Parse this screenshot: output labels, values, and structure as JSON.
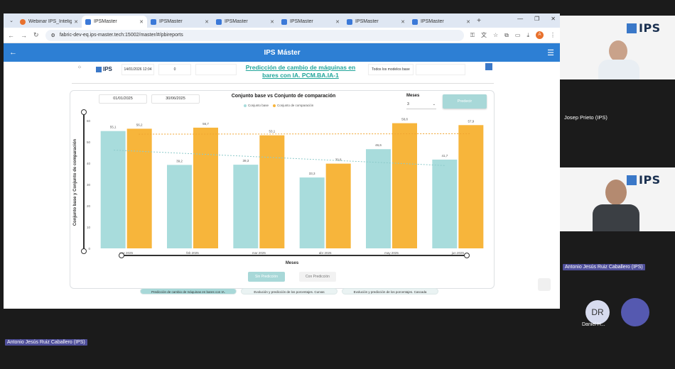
{
  "browser": {
    "tabs": [
      {
        "label": "Webinar IPS_Inteligencia",
        "icon": "orange",
        "active": false
      },
      {
        "label": "IPSMaster",
        "icon": "blue",
        "active": true
      },
      {
        "label": "IPSMaster",
        "icon": "blue",
        "active": false
      },
      {
        "label": "IPSMaster",
        "icon": "blue",
        "active": false
      },
      {
        "label": "IPSMaster",
        "icon": "blue",
        "active": false
      },
      {
        "label": "IPSMaster",
        "icon": "blue",
        "active": false
      },
      {
        "label": "IPSMaster",
        "icon": "blue",
        "active": false
      }
    ],
    "url": "fabric-dev-eq.ips-master.tech:15002/master/#/pbireports",
    "profile_initial": "A"
  },
  "app": {
    "title": "IPS Máster"
  },
  "report": {
    "header": {
      "logo_text": "IPS",
      "date": "14/01/2026 12:04",
      "count": "0",
      "filter_placeholder": "",
      "title": "Predicción de cambio de máquinas en bares con IA. PCM.BA.IA-1",
      "models_label": "Todos los modelos base"
    },
    "date_from": "01/01/2025",
    "date_to": "30/06/2025",
    "meses_label": "Meses",
    "meses_value": "3",
    "predecir_label": "Predecir",
    "sin_prediccion": "Sin Predicción",
    "con_prediccion": "Con Predicción",
    "bottom_tabs": [
      "Predicción de cambio de máquinas en bares con IA.",
      "Evolución y predicción de los porcentajes. Curvas",
      "Evolución y predicción de los porcentajes. Cascada"
    ]
  },
  "chart_data": {
    "type": "bar",
    "title": "Conjunto base vs Conjunto de comparación",
    "xlabel": "Meses",
    "ylabel": "Conjunto base y Conjunto de comparación",
    "categories": [
      "ene 2025",
      "feb 2025",
      "mar 2025",
      "abr 2025",
      "may 2025",
      "jun 2025"
    ],
    "series": [
      {
        "name": "Conjunto base",
        "color": "#a8dcdc",
        "values": [
          55.1,
          39.2,
          39.3,
          33.3,
          46.6,
          41.7
        ],
        "labels": [
          "55,1",
          "39,2",
          "39,3",
          "33,3",
          "46,6",
          "41,7"
        ]
      },
      {
        "name": "Conjunto de comparación",
        "color": "#f7b53b",
        "values": [
          56.2,
          56.7,
          53.1,
          39.8,
          58.8,
          57.9
        ],
        "labels": [
          "56,2",
          "56,7",
          "53,1",
          "39,8",
          "58,8",
          "57,9"
        ]
      }
    ],
    "trendlines": true,
    "yticks": [
      0,
      10,
      20,
      30,
      40,
      50,
      60
    ],
    "ylim": [
      0,
      62
    ],
    "legend": "top",
    "grid": false
  },
  "participants": [
    {
      "name": "Josep Prieto (IPS)"
    },
    {
      "name": "Antonio Jesús Ruiz Caballero (IPS)"
    },
    {
      "name": "Daniel H...",
      "initials": "DR"
    }
  ],
  "presenter_tag": "Antonio Jesús Ruiz Caballero (IPS)",
  "tile_logo": "IPS"
}
